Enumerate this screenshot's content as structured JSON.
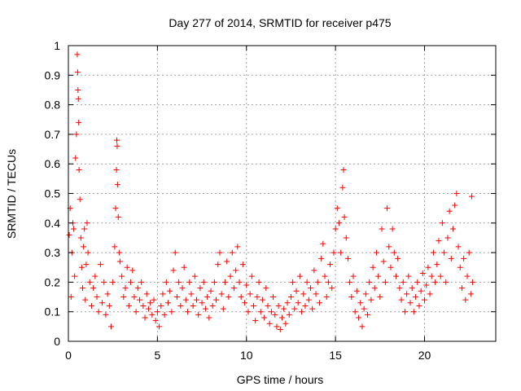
{
  "chart_data": {
    "type": "scatter",
    "title": "Day 277 of 2014, SRMTID for receiver p475",
    "xlabel": "GPS time / hours",
    "ylabel": "SRMTID / TECUs",
    "xlim": [
      0,
      24
    ],
    "ylim": [
      0,
      1
    ],
    "xticks": [
      0,
      5,
      10,
      15,
      20
    ],
    "yticks": [
      0,
      0.1,
      0.2,
      0.3,
      0.4,
      0.5,
      0.6,
      0.7,
      0.8,
      0.9,
      1
    ],
    "grid": true,
    "marker": "+",
    "series": [
      {
        "name": "p475",
        "color": "#ff0000",
        "points": [
          [
            0.05,
            0.36
          ],
          [
            0.1,
            0.45
          ],
          [
            0.15,
            0.15
          ],
          [
            0.2,
            0.3
          ],
          [
            0.25,
            0.4
          ],
          [
            0.3,
            0.38
          ],
          [
            0.35,
            0.22
          ],
          [
            0.4,
            0.62
          ],
          [
            0.45,
            0.7
          ],
          [
            0.5,
            0.97
          ],
          [
            0.52,
            0.91
          ],
          [
            0.54,
            0.85
          ],
          [
            0.56,
            0.82
          ],
          [
            0.58,
            0.74
          ],
          [
            0.6,
            0.58
          ],
          [
            0.65,
            0.48
          ],
          [
            0.7,
            0.35
          ],
          [
            0.75,
            0.25
          ],
          [
            0.8,
            0.18
          ],
          [
            0.85,
            0.32
          ],
          [
            0.9,
            0.38
          ],
          [
            0.95,
            0.14
          ],
          [
            1.0,
            0.26
          ],
          [
            1.05,
            0.4
          ],
          [
            1.1,
            0.3
          ],
          [
            1.2,
            0.2
          ],
          [
            1.3,
            0.12
          ],
          [
            1.4,
            0.18
          ],
          [
            1.5,
            0.22
          ],
          [
            1.6,
            0.15
          ],
          [
            1.7,
            0.1
          ],
          [
            1.8,
            0.26
          ],
          [
            1.9,
            0.13
          ],
          [
            2.0,
            0.2
          ],
          [
            2.1,
            0.09
          ],
          [
            2.2,
            0.16
          ],
          [
            2.3,
            0.12
          ],
          [
            2.4,
            0.05
          ],
          [
            2.5,
            0.2
          ],
          [
            2.6,
            0.32
          ],
          [
            2.65,
            0.45
          ],
          [
            2.7,
            0.58
          ],
          [
            2.72,
            0.68
          ],
          [
            2.74,
            0.66
          ],
          [
            2.76,
            0.53
          ],
          [
            2.8,
            0.42
          ],
          [
            2.85,
            0.3
          ],
          [
            2.9,
            0.27
          ],
          [
            3.0,
            0.22
          ],
          [
            3.1,
            0.15
          ],
          [
            3.2,
            0.18
          ],
          [
            3.3,
            0.25
          ],
          [
            3.4,
            0.12
          ],
          [
            3.5,
            0.2
          ],
          [
            3.6,
            0.24
          ],
          [
            3.7,
            0.15
          ],
          [
            3.8,
            0.1
          ],
          [
            3.9,
            0.18
          ],
          [
            4.0,
            0.14
          ],
          [
            4.1,
            0.2
          ],
          [
            4.2,
            0.12
          ],
          [
            4.3,
            0.08
          ],
          [
            4.4,
            0.16
          ],
          [
            4.5,
            0.11
          ],
          [
            4.6,
            0.13
          ],
          [
            4.7,
            0.09
          ],
          [
            4.8,
            0.14
          ],
          [
            4.9,
            0.07
          ],
          [
            5.0,
            0.1
          ],
          [
            5.1,
            0.05
          ],
          [
            5.2,
            0.12
          ],
          [
            5.3,
            0.16
          ],
          [
            5.4,
            0.09
          ],
          [
            5.5,
            0.2
          ],
          [
            5.6,
            0.13
          ],
          [
            5.7,
            0.17
          ],
          [
            5.8,
            0.1
          ],
          [
            5.9,
            0.24
          ],
          [
            6.0,
            0.3
          ],
          [
            6.1,
            0.15
          ],
          [
            6.2,
            0.2
          ],
          [
            6.3,
            0.12
          ],
          [
            6.4,
            0.18
          ],
          [
            6.5,
            0.25
          ],
          [
            6.6,
            0.14
          ],
          [
            6.7,
            0.1
          ],
          [
            6.8,
            0.2
          ],
          [
            6.9,
            0.16
          ],
          [
            7.0,
            0.12
          ],
          [
            7.1,
            0.22
          ],
          [
            7.2,
            0.14
          ],
          [
            7.3,
            0.09
          ],
          [
            7.4,
            0.18
          ],
          [
            7.5,
            0.13
          ],
          [
            7.6,
            0.2
          ],
          [
            7.7,
            0.11
          ],
          [
            7.8,
            0.15
          ],
          [
            7.9,
            0.08
          ],
          [
            8.0,
            0.17
          ],
          [
            8.1,
            0.12
          ],
          [
            8.2,
            0.2
          ],
          [
            8.3,
            0.14
          ],
          [
            8.4,
            0.26
          ],
          [
            8.5,
            0.3
          ],
          [
            8.6,
            0.16
          ],
          [
            8.7,
            0.11
          ],
          [
            8.8,
            0.2
          ],
          [
            8.9,
            0.27
          ],
          [
            9.0,
            0.15
          ],
          [
            9.1,
            0.22
          ],
          [
            9.2,
            0.3
          ],
          [
            9.3,
            0.18
          ],
          [
            9.4,
            0.24
          ],
          [
            9.5,
            0.32
          ],
          [
            9.6,
            0.2
          ],
          [
            9.7,
            0.15
          ],
          [
            9.8,
            0.26
          ],
          [
            9.9,
            0.13
          ],
          [
            10.0,
            0.19
          ],
          [
            10.1,
            0.1
          ],
          [
            10.2,
            0.16
          ],
          [
            10.3,
            0.22
          ],
          [
            10.4,
            0.12
          ],
          [
            10.5,
            0.07
          ],
          [
            10.6,
            0.15
          ],
          [
            10.7,
            0.2
          ],
          [
            10.8,
            0.1
          ],
          [
            10.9,
            0.14
          ],
          [
            11.0,
            0.08
          ],
          [
            11.1,
            0.18
          ],
          [
            11.2,
            0.12
          ],
          [
            11.3,
            0.06
          ],
          [
            11.4,
            0.1
          ],
          [
            11.5,
            0.15
          ],
          [
            11.6,
            0.09
          ],
          [
            11.7,
            0.05
          ],
          [
            11.8,
            0.12
          ],
          [
            11.9,
            0.04
          ],
          [
            12.0,
            0.08
          ],
          [
            12.1,
            0.11
          ],
          [
            12.2,
            0.06
          ],
          [
            12.3,
            0.13
          ],
          [
            12.4,
            0.09
          ],
          [
            12.5,
            0.15
          ],
          [
            12.6,
            0.2
          ],
          [
            12.7,
            0.11
          ],
          [
            12.8,
            0.17
          ],
          [
            12.9,
            0.13
          ],
          [
            13.0,
            0.22
          ],
          [
            13.1,
            0.1
          ],
          [
            13.2,
            0.16
          ],
          [
            13.3,
            0.12
          ],
          [
            13.4,
            0.2
          ],
          [
            13.5,
            0.14
          ],
          [
            13.6,
            0.18
          ],
          [
            13.7,
            0.11
          ],
          [
            13.8,
            0.24
          ],
          [
            13.9,
            0.16
          ],
          [
            14.0,
            0.2
          ],
          [
            14.1,
            0.13
          ],
          [
            14.2,
            0.28
          ],
          [
            14.3,
            0.33
          ],
          [
            14.4,
            0.22
          ],
          [
            14.5,
            0.15
          ],
          [
            14.6,
            0.2
          ],
          [
            14.7,
            0.26
          ],
          [
            14.8,
            0.18
          ],
          [
            14.9,
            0.3
          ],
          [
            15.0,
            0.38
          ],
          [
            15.1,
            0.45
          ],
          [
            15.2,
            0.4
          ],
          [
            15.3,
            0.3
          ],
          [
            15.4,
            0.52
          ],
          [
            15.45,
            0.58
          ],
          [
            15.5,
            0.42
          ],
          [
            15.6,
            0.35
          ],
          [
            15.7,
            0.28
          ],
          [
            15.8,
            0.2
          ],
          [
            15.9,
            0.15
          ],
          [
            16.0,
            0.22
          ],
          [
            16.1,
            0.1
          ],
          [
            16.2,
            0.17
          ],
          [
            16.3,
            0.08
          ],
          [
            16.4,
            0.13
          ],
          [
            16.5,
            0.05
          ],
          [
            16.6,
            0.11
          ],
          [
            16.7,
            0.16
          ],
          [
            16.8,
            0.09
          ],
          [
            16.9,
            0.2
          ],
          [
            17.0,
            0.14
          ],
          [
            17.1,
            0.25
          ],
          [
            17.2,
            0.18
          ],
          [
            17.3,
            0.3
          ],
          [
            17.4,
            0.22
          ],
          [
            17.5,
            0.15
          ],
          [
            17.6,
            0.38
          ],
          [
            17.7,
            0.27
          ],
          [
            17.8,
            0.2
          ],
          [
            17.9,
            0.45
          ],
          [
            18.0,
            0.32
          ],
          [
            18.1,
            0.25
          ],
          [
            18.2,
            0.38
          ],
          [
            18.3,
            0.3
          ],
          [
            18.4,
            0.22
          ],
          [
            18.5,
            0.28
          ],
          [
            18.6,
            0.18
          ],
          [
            18.7,
            0.14
          ],
          [
            18.8,
            0.2
          ],
          [
            18.9,
            0.1
          ],
          [
            19.0,
            0.16
          ],
          [
            19.1,
            0.22
          ],
          [
            19.2,
            0.13
          ],
          [
            19.3,
            0.18
          ],
          [
            19.4,
            0.1
          ],
          [
            19.5,
            0.15
          ],
          [
            19.6,
            0.2
          ],
          [
            19.7,
            0.12
          ],
          [
            19.8,
            0.17
          ],
          [
            19.9,
            0.23
          ],
          [
            20.0,
            0.14
          ],
          [
            20.1,
            0.19
          ],
          [
            20.2,
            0.25
          ],
          [
            20.3,
            0.16
          ],
          [
            20.4,
            0.22
          ],
          [
            20.5,
            0.3
          ],
          [
            20.6,
            0.2
          ],
          [
            20.7,
            0.26
          ],
          [
            20.8,
            0.34
          ],
          [
            20.9,
            0.22
          ],
          [
            21.0,
            0.4
          ],
          [
            21.1,
            0.3
          ],
          [
            21.2,
            0.2
          ],
          [
            21.3,
            0.35
          ],
          [
            21.4,
            0.44
          ],
          [
            21.5,
            0.28
          ],
          [
            21.6,
            0.38
          ],
          [
            21.7,
            0.46
          ],
          [
            21.8,
            0.5
          ],
          [
            21.9,
            0.32
          ],
          [
            22.0,
            0.25
          ],
          [
            22.1,
            0.18
          ],
          [
            22.2,
            0.28
          ],
          [
            22.3,
            0.14
          ],
          [
            22.4,
            0.22
          ],
          [
            22.5,
            0.3
          ],
          [
            22.6,
            0.16
          ],
          [
            22.65,
            0.49
          ],
          [
            22.7,
            0.2
          ]
        ]
      }
    ]
  }
}
